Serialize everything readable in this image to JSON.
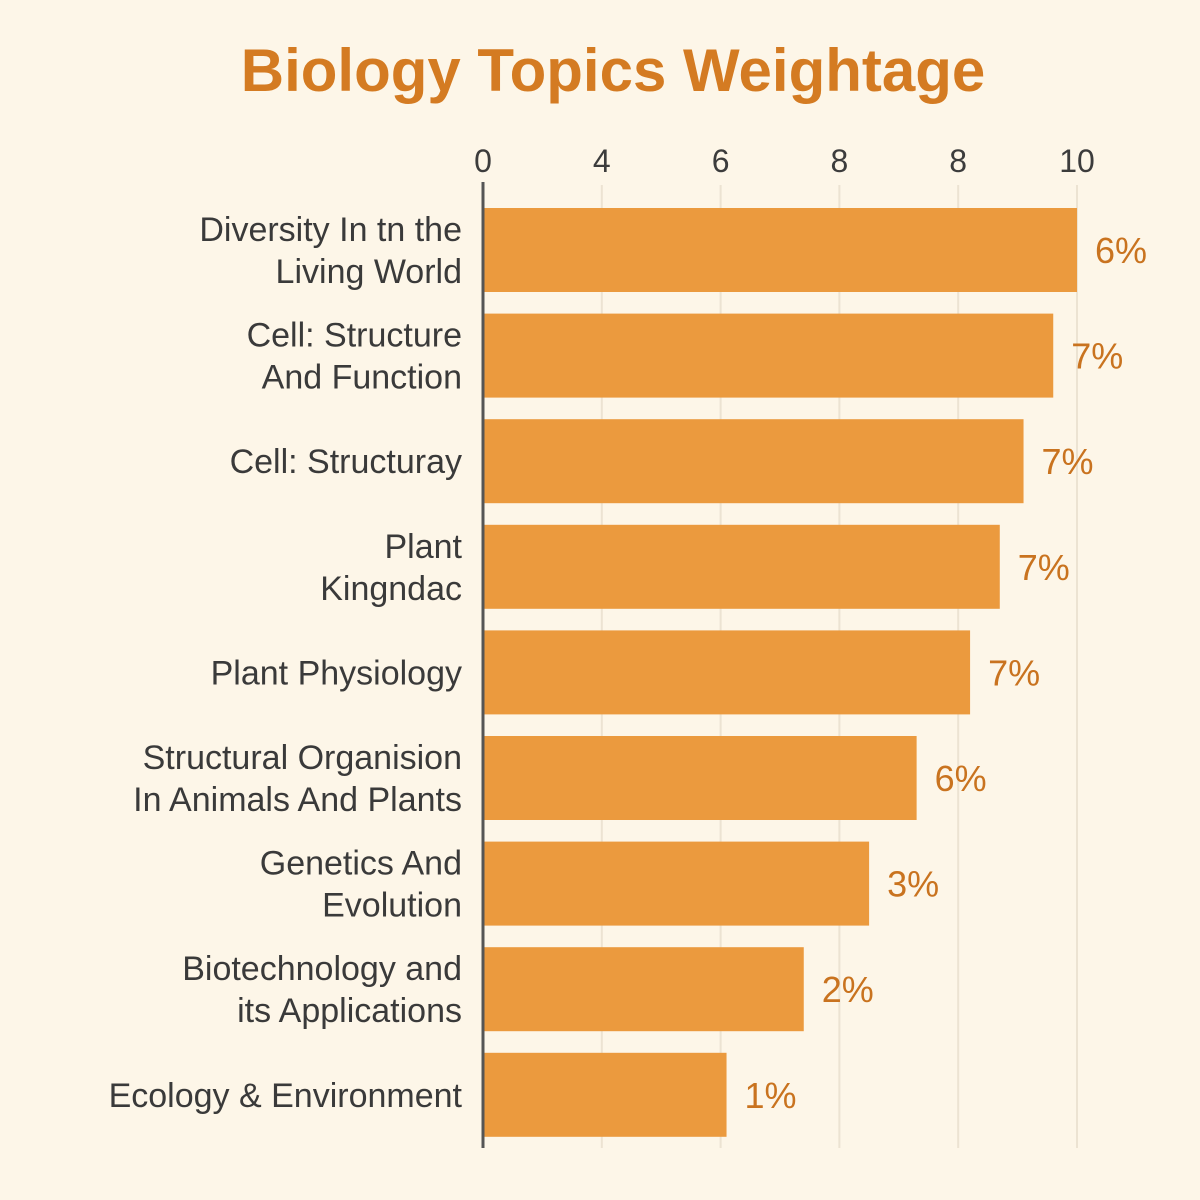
{
  "chart_data": {
    "type": "bar",
    "orientation": "horizontal",
    "title": "Biology Topics Weightage",
    "xlabel": "",
    "ylabel": "",
    "xlim": [
      0,
      10
    ],
    "x_tick_labels": [
      "0",
      "4",
      "6",
      "8",
      "8",
      "10"
    ],
    "grid": true,
    "categories": [
      [
        "Diversity In tn the",
        "Living World"
      ],
      [
        "Cell: Structure",
        "And Function"
      ],
      [
        "Cell: Structuray"
      ],
      [
        "Plant",
        "Kingndac"
      ],
      [
        "Plant Physiology"
      ],
      [
        "Structural Organision",
        "In Animals And Plants"
      ],
      [
        "Genetics And",
        "Evolution"
      ],
      [
        "Biotechnology and",
        "its Applications"
      ],
      [
        "Ecology & Environment"
      ]
    ],
    "values": [
      10.0,
      9.6,
      9.1,
      8.7,
      8.2,
      7.3,
      6.5,
      5.4,
      4.1
    ],
    "data_labels": [
      "6%",
      "7%",
      "7%",
      "7%",
      "7%",
      "6%",
      "3%",
      "2%",
      "1%"
    ],
    "colors": {
      "bar": "#eb9a3e",
      "title": "#d47b22",
      "data_label": "#c9731f",
      "background": "#fdf6e8"
    }
  }
}
